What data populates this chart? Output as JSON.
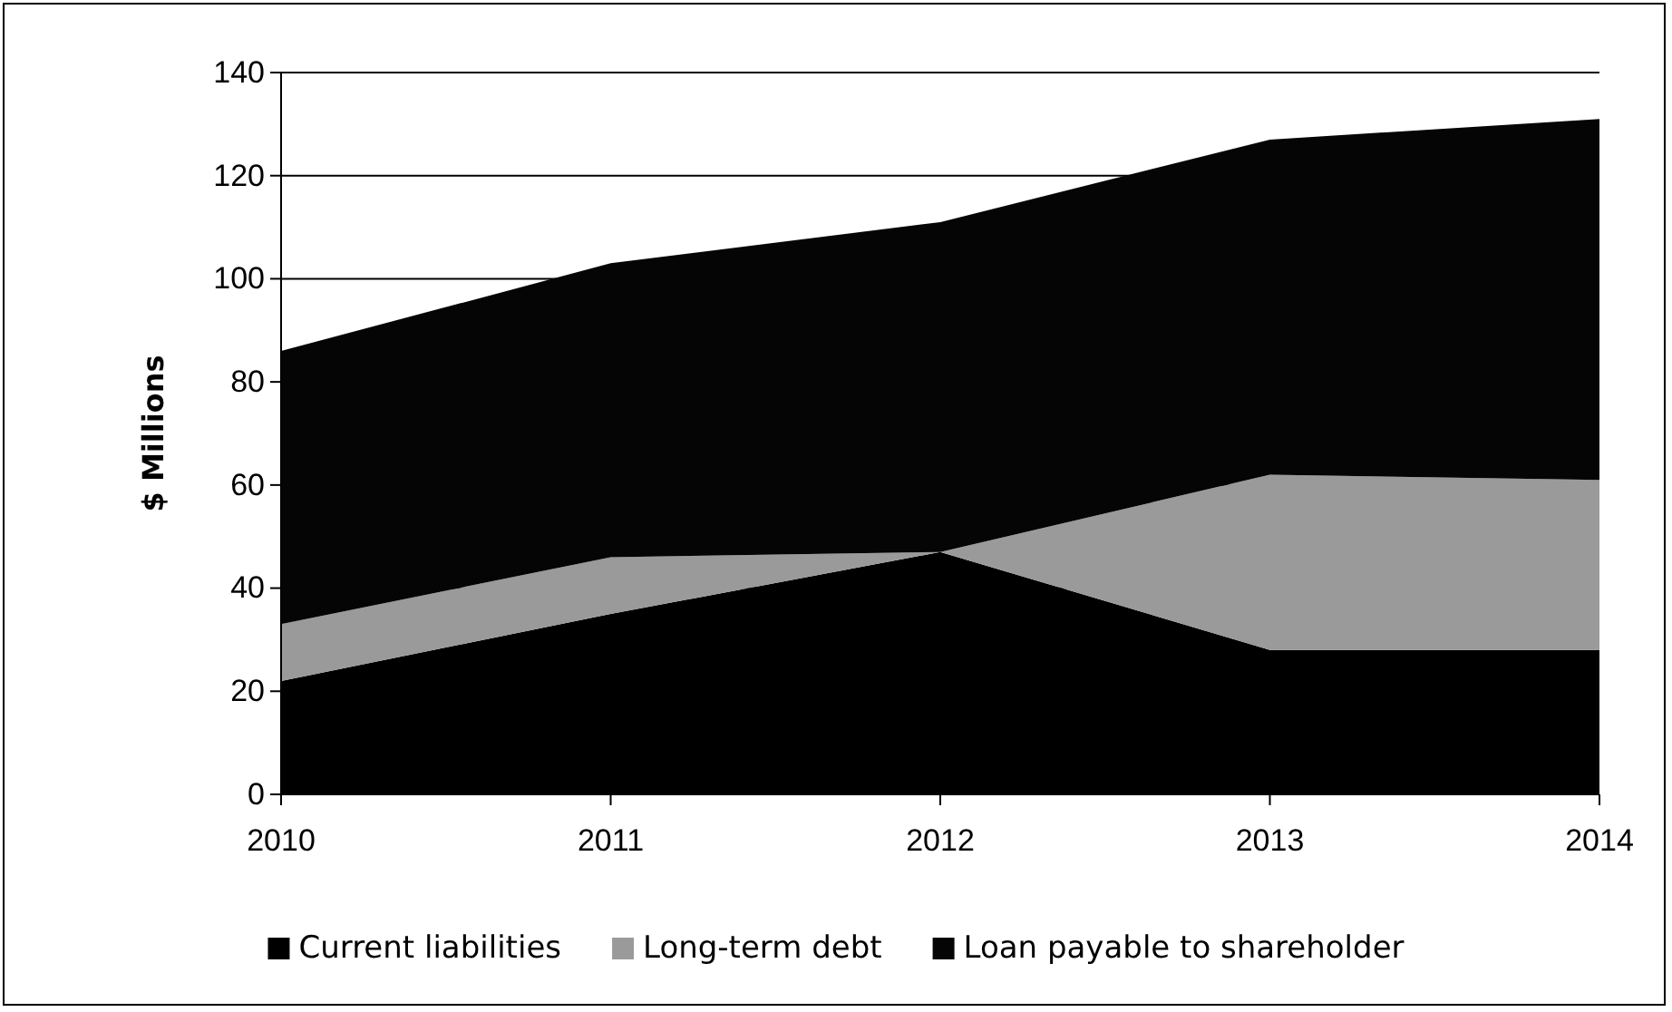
{
  "chart_data": {
    "type": "area",
    "stacked": true,
    "ylabel": "$ Millions",
    "categories": [
      "2010",
      "2011",
      "2012",
      "2013",
      "2014"
    ],
    "series": [
      {
        "name": "Current liabilities",
        "color": "#000000",
        "values": [
          22,
          35,
          47,
          28,
          28
        ]
      },
      {
        "name": "Long-term debt",
        "color": "#9a9a9a",
        "values": [
          11,
          11,
          0,
          34,
          33
        ]
      },
      {
        "name": "Loan payable to shareholder",
        "color": "#050505",
        "values": [
          53,
          57,
          64,
          65,
          70
        ]
      }
    ],
    "ylim": [
      0,
      140
    ],
    "yticks": [
      0,
      20,
      40,
      60,
      80,
      100,
      120,
      140
    ],
    "grid": "y",
    "legend": "bottom"
  }
}
